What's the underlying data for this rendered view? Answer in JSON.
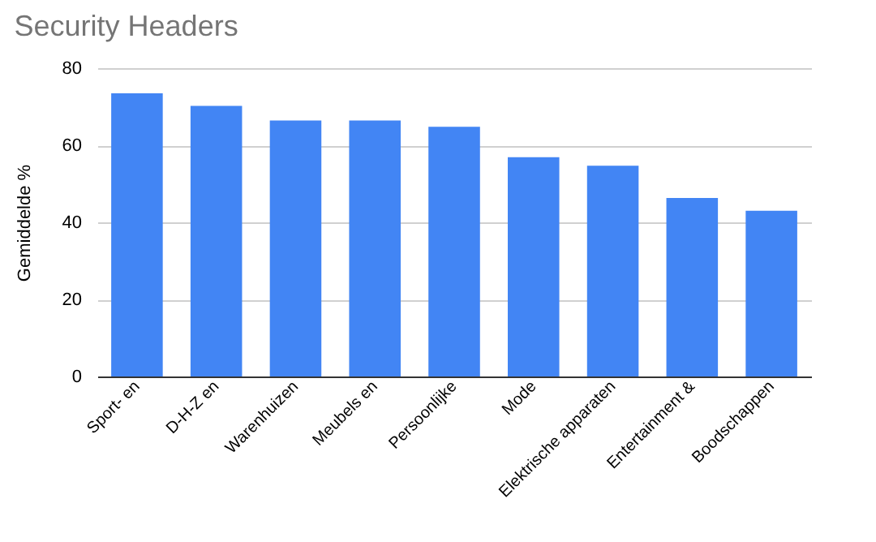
{
  "chart_data": {
    "type": "bar",
    "title": "Security Headers",
    "ylabel": "Gemiddelde %",
    "categories": [
      "Sport- en",
      "D-H-Z en",
      "Warenhuizen",
      "Meubels en",
      "Persoonlijke",
      "Mode",
      "Elektrische apparaten",
      "Entertainment &",
      "Boodschappen"
    ],
    "values": [
      73.5,
      70.2,
      66.4,
      66.4,
      64.8,
      56.9,
      54.7,
      46.3,
      43.0
    ],
    "color": "#4285f4",
    "ylim": [
      0,
      80
    ],
    "yticks": [
      0,
      20,
      40,
      60,
      80
    ],
    "grid": "y"
  }
}
